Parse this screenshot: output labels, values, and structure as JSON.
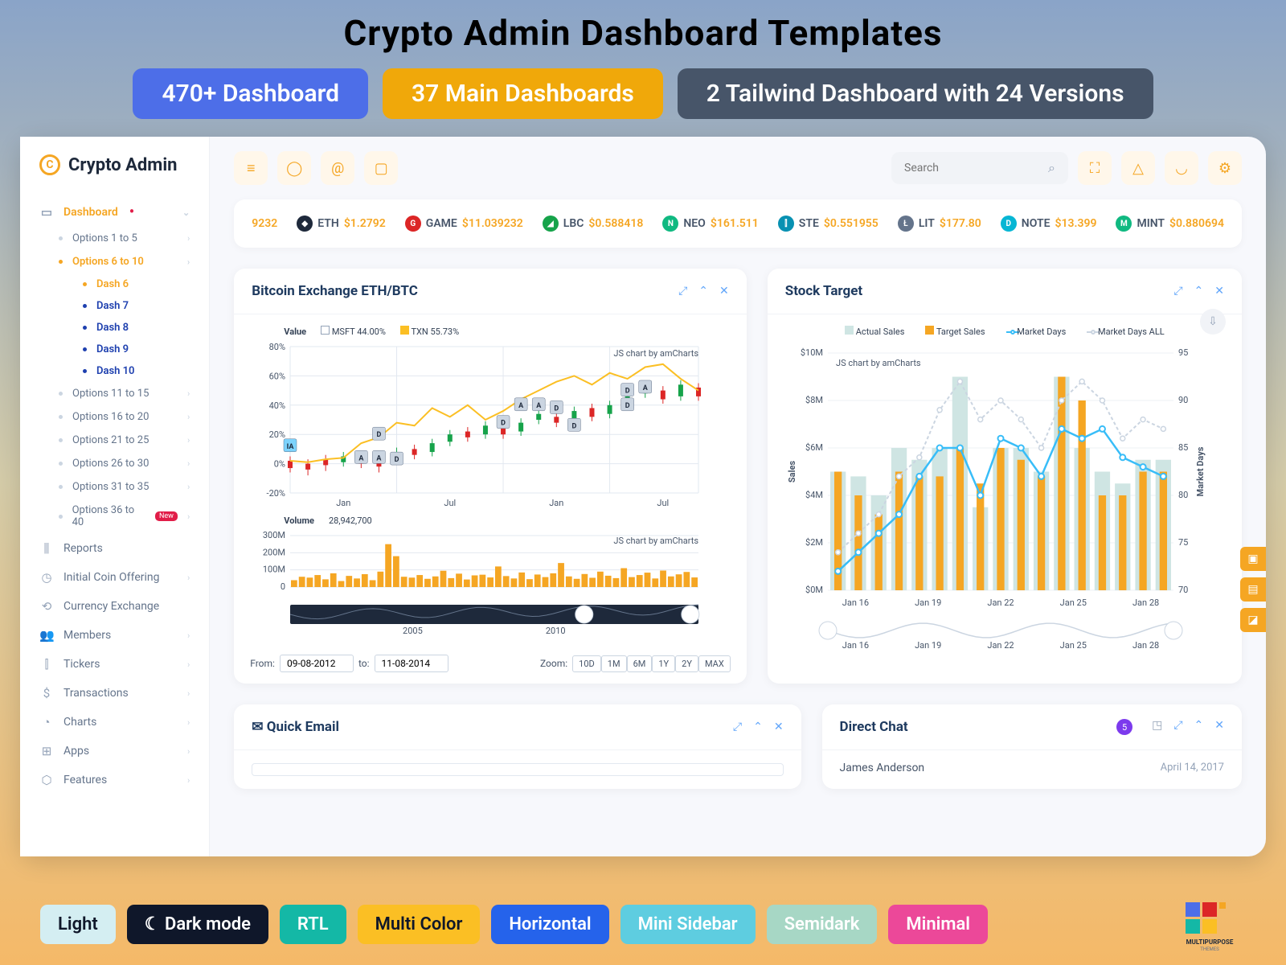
{
  "header": {
    "title": "Crypto Admin Dashboard Templates",
    "pills": [
      {
        "label": "470+ Dashboard",
        "bg": "#4d6ee8"
      },
      {
        "label": "37 Main Dashboards",
        "bg": "#f0a80a"
      },
      {
        "label": "2 Tailwind Dashboard with 24 Versions",
        "bg": "#475569"
      }
    ]
  },
  "logo": {
    "text": "Crypto Admin"
  },
  "sidebar": {
    "dashboard_label": "Dashboard",
    "opts": [
      {
        "label": "Options 1 to 5"
      },
      {
        "label": "Options 6 to 10",
        "selected": true
      },
      {
        "label": "Options 11 to 15"
      },
      {
        "label": "Options 16 to 20"
      },
      {
        "label": "Options 21 to 25"
      },
      {
        "label": "Options 26 to 30"
      },
      {
        "label": "Options 31 to 35"
      },
      {
        "label": "Options 36 to 40",
        "new": true
      }
    ],
    "dashes": [
      "Dash 6",
      "Dash 7",
      "Dash 8",
      "Dash 9",
      "Dash 10"
    ],
    "menu": [
      {
        "label": "Reports",
        "icon": "⫼"
      },
      {
        "label": "Initial Coin Offering",
        "icon": "◷",
        "chev": true
      },
      {
        "label": "Currency Exchange",
        "icon": "⟲"
      },
      {
        "label": "Members",
        "icon": "👥",
        "chev": true
      },
      {
        "label": "Tickers",
        "icon": "⫿",
        "chev": true
      },
      {
        "label": "Transactions",
        "icon": "$",
        "chev": true
      },
      {
        "label": "Charts",
        "icon": "◔",
        "chev": true
      },
      {
        "label": "Apps",
        "icon": "⊞",
        "chev": true
      },
      {
        "label": "Features",
        "icon": "⬡",
        "chev": true
      }
    ]
  },
  "search": {
    "placeholder": "Search"
  },
  "ticker": {
    "lead": "9232",
    "items": [
      {
        "sym": "ETH",
        "val": "$1.2792",
        "ic": "◆",
        "bg": "#1e293b"
      },
      {
        "sym": "GAME",
        "val": "$11.039232",
        "ic": "G",
        "bg": "#dc2626"
      },
      {
        "sym": "LBC",
        "val": "$0.588418",
        "ic": "◢",
        "bg": "#16a34a"
      },
      {
        "sym": "NEO",
        "val": "$161.511",
        "ic": "N",
        "bg": "#10b981"
      },
      {
        "sym": "STE",
        "val": "$0.551955",
        "ic": "⫿",
        "bg": "#0891b2"
      },
      {
        "sym": "LIT",
        "val": "$177.80",
        "ic": "Ł",
        "bg": "#64748b"
      },
      {
        "sym": "NOTE",
        "val": "$13.399",
        "ic": "D",
        "bg": "#06b6d4"
      },
      {
        "sym": "MINT",
        "val": "$0.880694",
        "ic": "M",
        "bg": "#10b981"
      }
    ]
  },
  "exchange": {
    "title": "Bitcoin Exchange ETH/BTC",
    "value_label": "Value",
    "msft": "MSFT  44.00%",
    "txn": "TXN  55.73%",
    "credit": "JS chart by amCharts",
    "ylabels": [
      "-20%",
      "0%",
      "20%",
      "40%",
      "60%",
      "80%"
    ],
    "xlabels": [
      "Jan",
      "Jul",
      "Jan",
      "Jul"
    ],
    "yellow_line": [
      2,
      1,
      3,
      4,
      14,
      18,
      28,
      26,
      38,
      32,
      40,
      30,
      36,
      44,
      50,
      56,
      60,
      54,
      62,
      58,
      66,
      68,
      58,
      50
    ],
    "candles": [
      {
        "x": 0,
        "o": 2,
        "c": -3,
        "l": -6,
        "h": 5
      },
      {
        "x": 1,
        "o": 0,
        "c": -4,
        "l": -8,
        "h": 3
      },
      {
        "x": 2,
        "o": 3,
        "c": -1,
        "l": -5,
        "h": 6
      },
      {
        "x": 3,
        "o": 1,
        "c": 5,
        "l": -2,
        "h": 8
      },
      {
        "x": 4,
        "o": 4,
        "c": 0,
        "l": -3,
        "h": 7
      },
      {
        "x": 5,
        "o": 2,
        "c": -2,
        "l": -6,
        "h": 5
      },
      {
        "x": 6,
        "o": 3,
        "c": 8,
        "l": 0,
        "h": 11
      },
      {
        "x": 7,
        "o": 10,
        "c": 6,
        "l": 3,
        "h": 13
      },
      {
        "x": 8,
        "o": 8,
        "c": 14,
        "l": 5,
        "h": 17
      },
      {
        "x": 9,
        "o": 15,
        "c": 20,
        "l": 12,
        "h": 23
      },
      {
        "x": 10,
        "o": 22,
        "c": 18,
        "l": 15,
        "h": 25
      },
      {
        "x": 11,
        "o": 20,
        "c": 26,
        "l": 17,
        "h": 29
      },
      {
        "x": 12,
        "o": 24,
        "c": 20,
        "l": 17,
        "h": 27
      },
      {
        "x": 13,
        "o": 22,
        "c": 28,
        "l": 19,
        "h": 31
      },
      {
        "x": 14,
        "o": 30,
        "c": 34,
        "l": 27,
        "h": 37
      },
      {
        "x": 15,
        "o": 32,
        "c": 28,
        "l": 25,
        "h": 35
      },
      {
        "x": 16,
        "o": 30,
        "c": 36,
        "l": 27,
        "h": 39
      },
      {
        "x": 17,
        "o": 38,
        "c": 32,
        "l": 29,
        "h": 41
      },
      {
        "x": 18,
        "o": 34,
        "c": 40,
        "l": 31,
        "h": 43
      },
      {
        "x": 19,
        "o": 42,
        "c": 46,
        "l": 39,
        "h": 49
      },
      {
        "x": 20,
        "o": 48,
        "c": 52,
        "l": 45,
        "h": 55
      },
      {
        "x": 21,
        "o": 50,
        "c": 44,
        "l": 41,
        "h": 53
      },
      {
        "x": 22,
        "o": 46,
        "c": 54,
        "l": 43,
        "h": 57
      },
      {
        "x": 23,
        "o": 52,
        "c": 46,
        "l": 43,
        "h": 55
      }
    ],
    "markers": [
      {
        "x": 0,
        "y": 12,
        "t": "IA",
        "c": "#7dd3fc"
      },
      {
        "x": 4,
        "y": 4,
        "t": "A",
        "c": "#cbd5e1"
      },
      {
        "x": 5,
        "y": 4,
        "t": "A",
        "c": "#cbd5e1"
      },
      {
        "x": 6,
        "y": 3,
        "t": "D",
        "c": "#cbd5e1"
      },
      {
        "x": 5,
        "y": 20,
        "t": "D",
        "c": "#cbd5e1"
      },
      {
        "x": 12,
        "y": 28,
        "t": "D",
        "c": "#cbd5e1"
      },
      {
        "x": 13,
        "y": 40,
        "t": "A",
        "c": "#cbd5e1"
      },
      {
        "x": 14,
        "y": 40,
        "t": "A",
        "c": "#cbd5e1"
      },
      {
        "x": 15,
        "y": 38,
        "t": "D",
        "c": "#cbd5e1"
      },
      {
        "x": 16,
        "y": 26,
        "t": "D",
        "c": "#cbd5e1"
      },
      {
        "x": 19,
        "y": 50,
        "t": "D",
        "c": "#cbd5e1"
      },
      {
        "x": 20,
        "y": 52,
        "t": "A",
        "c": "#cbd5e1"
      },
      {
        "x": 19,
        "y": 40,
        "t": "D",
        "c": "#cbd5e1"
      }
    ],
    "colors": {
      "up": "#16a34a",
      "down": "#dc2626",
      "line": "#fbbf24",
      "grid": "#e2e8f0"
    },
    "vol": {
      "label": "Volume",
      "current": "28,942,700",
      "ylabels": [
        "0",
        "100M",
        "200M",
        "300M"
      ],
      "bars": [
        40,
        60,
        55,
        70,
        45,
        80,
        35,
        65,
        50,
        75,
        40,
        90,
        250,
        180,
        60,
        55,
        70,
        48,
        62,
        95,
        52,
        78,
        44,
        68,
        72,
        56,
        120,
        64,
        50,
        85,
        46,
        73,
        58,
        80,
        140,
        62,
        48,
        76,
        54,
        90,
        66,
        52,
        110,
        58,
        70,
        84,
        50,
        96,
        62,
        74,
        88,
        56
      ],
      "color": "#f5a623"
    },
    "scrub": {
      "labels": [
        "2005",
        "2010"
      ]
    },
    "zoom": {
      "from_label": "From:",
      "from": "09-08-2012",
      "to_label": "to:",
      "to": "11-08-2014",
      "zoom_label": "Zoom:",
      "buttons": [
        "10D",
        "1M",
        "6M",
        "1Y",
        "2Y",
        "MAX"
      ]
    }
  },
  "stock": {
    "title": "Stock Target",
    "credit": "JS chart by amCharts",
    "legend": [
      "Actual Sales",
      "Target Sales",
      "Market Days",
      "Market Days ALL"
    ],
    "legend_colors": [
      "#cfe5e3",
      "#f5a623",
      "#38bdf8",
      "#cbd5e1"
    ],
    "y1": {
      "label": "Sales",
      "ticks": [
        "$0M",
        "$2M",
        "$4M",
        "$6M",
        "$8M",
        "$10M"
      ]
    },
    "y2": {
      "label": "Market Days",
      "ticks": [
        "70",
        "75",
        "80",
        "85",
        "90",
        "95"
      ]
    },
    "xlabels": [
      "Jan 16",
      "Jan 19",
      "Jan 22",
      "Jan 25",
      "Jan 28"
    ],
    "actual": [
      5.0,
      4.8,
      4.0,
      6.0,
      5.5,
      6.0,
      9.0,
      3.5,
      6.0,
      6.0,
      5.0,
      9.0,
      6.0,
      5.0,
      4.5,
      5.5,
      5.5
    ],
    "target": [
      5.0,
      4.0,
      3.2,
      5.0,
      4.8,
      4.8,
      6.0,
      4.5,
      6.0,
      5.5,
      4.8,
      9.0,
      8.0,
      4.0,
      4.0,
      5.0,
      5.0
    ],
    "line": [
      72,
      74,
      76,
      78,
      82,
      85,
      85,
      80,
      86,
      85,
      82,
      87,
      86,
      87,
      84,
      83,
      82
    ],
    "line_all": [
      74,
      76,
      78,
      82,
      84,
      89,
      92,
      88,
      90,
      88,
      85,
      90,
      92,
      90,
      86,
      88,
      87
    ],
    "colors": {
      "actual": "#cfe5e3",
      "target": "#f5a623",
      "line": "#38bdf8",
      "line_all": "#cbd5e1",
      "grid": "#eef0f4"
    }
  },
  "quick_email": {
    "title": "Quick Email"
  },
  "chat": {
    "title": "Direct Chat",
    "badge": "5",
    "name": "James Anderson",
    "date": "April 14, 2017"
  },
  "footer": [
    {
      "label": "Light",
      "bg": "#d4eef2",
      "fg": "#0f172a"
    },
    {
      "label": "Dark mode",
      "bg": "#0f172a",
      "fg": "#fff",
      "icon": "☾"
    },
    {
      "label": "RTL",
      "bg": "#14b8a6",
      "fg": "#fff"
    },
    {
      "label": "Multi Color",
      "bg": "#fbbf24",
      "fg": "#0f172a"
    },
    {
      "label": "Horizontal",
      "bg": "#2563eb",
      "fg": "#fff"
    },
    {
      "label": "Mini Sidebar",
      "bg": "#5ecde0",
      "fg": "#fff"
    },
    {
      "label": "Semidark",
      "bg": "#a7d7c5",
      "fg": "#fff"
    },
    {
      "label": "Minimal",
      "bg": "#ec4899",
      "fg": "#fff"
    }
  ]
}
